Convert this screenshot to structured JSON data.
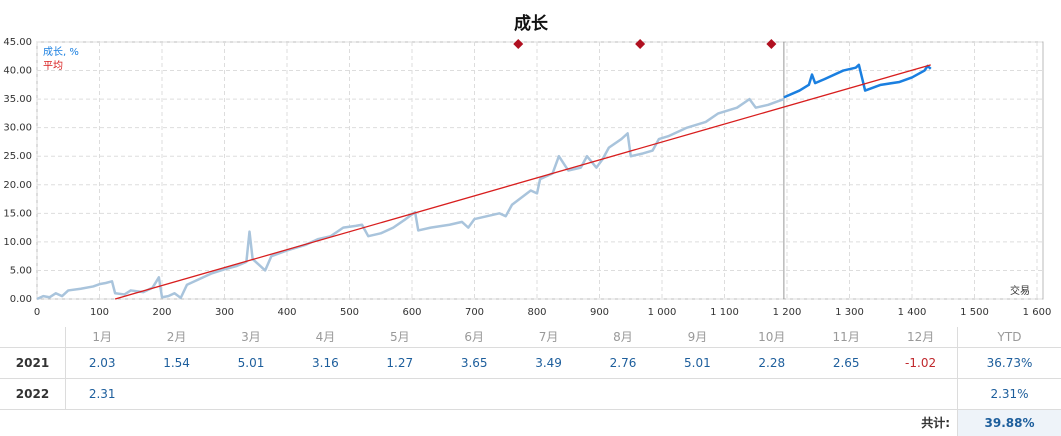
{
  "chart_data": {
    "type": "line",
    "title": "成长",
    "x_label": "交易",
    "xlim": [
      0,
      1600
    ],
    "xticks": [
      0,
      100,
      200,
      300,
      400,
      500,
      600,
      700,
      800,
      900,
      {
        "value": 1000,
        "label": "1 000"
      },
      {
        "value": 1100,
        "label": "1 100"
      },
      {
        "value": 1200,
        "label": "1 200"
      },
      {
        "value": 1300,
        "label": "1 300"
      },
      {
        "value": 1400,
        "label": "1 400"
      },
      {
        "value": 1500,
        "label": "1 500"
      },
      {
        "value": 1600,
        "label": "1 600"
      }
    ],
    "ylim": [
      0,
      45
    ],
    "yticks": [
      {
        "value": 0,
        "label": "0.00"
      },
      {
        "value": 5,
        "label": "5.00"
      },
      {
        "value": 10,
        "label": "10.00"
      },
      {
        "value": 15,
        "label": "15.00"
      },
      {
        "value": 20,
        "label": "20.00"
      },
      {
        "value": 25,
        "label": "25.00"
      },
      {
        "value": 30,
        "label": "30.00"
      },
      {
        "value": 35,
        "label": "35.00"
      },
      {
        "value": 40,
        "label": "40.00"
      },
      {
        "value": 45,
        "label": "45.00"
      }
    ],
    "grid": true,
    "legend": "top-left",
    "divider_x": 1195,
    "markers": {
      "color": "#b01020",
      "x": [
        770,
        965,
        1175
      ]
    },
    "series": [
      {
        "name": "成长, %",
        "color": "#1a7fe0",
        "x": [
          1195,
          1220,
          1235,
          1240,
          1245,
          1260,
          1290,
          1310,
          1315,
          1325,
          1350,
          1380,
          1400,
          1420,
          1425,
          1430
        ],
        "values": [
          35.3,
          36.5,
          37.5,
          39.3,
          37.8,
          38.5,
          40.0,
          40.5,
          41.0,
          36.5,
          37.5,
          38.0,
          38.8,
          40.0,
          40.8,
          40.3
        ]
      },
      {
        "color": "#a9c4dc",
        "x": [
          0,
          10,
          20,
          30,
          40,
          50,
          70,
          90,
          100,
          110,
          120,
          125,
          140,
          150,
          170,
          185,
          195,
          200,
          210,
          220,
          230,
          240,
          260,
          280,
          300,
          320,
          335,
          340,
          345,
          355,
          365,
          375,
          400,
          430,
          450,
          470,
          490,
          510,
          520,
          530,
          550,
          570,
          590,
          605,
          610,
          630,
          660,
          680,
          690,
          700,
          720,
          740,
          750,
          760,
          790,
          800,
          805,
          825,
          835,
          850,
          870,
          880,
          895,
          905,
          915,
          935,
          945,
          950,
          970,
          985,
          995,
          1010,
          1040,
          1070,
          1090,
          1120,
          1140,
          1150,
          1170,
          1195
        ],
        "values": [
          0,
          0.5,
          0.3,
          1,
          0.5,
          1.5,
          1.8,
          2.2,
          2.6,
          2.8,
          3.1,
          1.0,
          0.8,
          1.5,
          1.2,
          2.0,
          3.8,
          0.3,
          0.5,
          1.0,
          0.2,
          2.5,
          3.5,
          4.5,
          5.2,
          5.8,
          6.5,
          11.8,
          7.0,
          6.0,
          5.0,
          7.5,
          8.5,
          9.5,
          10.5,
          11.0,
          12.5,
          12.8,
          13.0,
          11.0,
          11.5,
          12.5,
          14.0,
          15.2,
          12.0,
          12.5,
          13.0,
          13.5,
          12.5,
          14.0,
          14.5,
          15.0,
          14.5,
          16.5,
          19.0,
          18.5,
          21.0,
          22.0,
          25.0,
          22.5,
          23.0,
          25.0,
          23.0,
          24.5,
          26.5,
          28.0,
          29.0,
          25.0,
          25.5,
          26.0,
          28.0,
          28.5,
          30.0,
          31.0,
          32.5,
          33.5,
          35.0,
          33.5,
          34.0,
          35.0
        ]
      },
      {
        "name": "平均",
        "color": "#d81e1e",
        "x": [
          125,
          1430
        ],
        "values": [
          0,
          41
        ]
      }
    ]
  },
  "table": {
    "header": [
      "1月",
      "2月",
      "3月",
      "4月",
      "5月",
      "6月",
      "7月",
      "8月",
      "9月",
      "10月",
      "11月",
      "12月",
      "YTD"
    ],
    "rows": [
      {
        "year": "2021",
        "cells": [
          "2.03",
          "1.54",
          "5.01",
          "3.16",
          "1.27",
          "3.65",
          "3.49",
          "2.76",
          "5.01",
          "2.28",
          "2.65",
          "-1.02"
        ],
        "ytd": "36.73%"
      },
      {
        "year": "2022",
        "cells": [
          "2.31"
        ],
        "ytd": "2.31%"
      }
    ],
    "total_label": "共计:",
    "total": "39.88%"
  }
}
